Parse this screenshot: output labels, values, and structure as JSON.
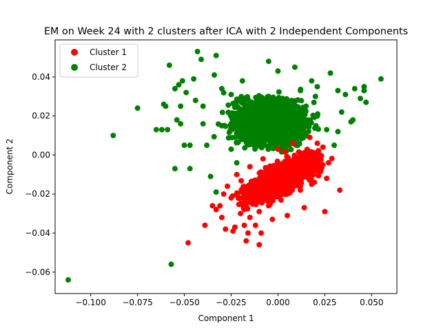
{
  "chart_data": {
    "type": "scatter",
    "title": "EM on Week 24 with 2 clusters after ICA with 2 Independent Components",
    "xlabel": "Component 1",
    "ylabel": "Component 2",
    "xlim": [
      -0.119,
      0.0635
    ],
    "ylim": [
      -0.071,
      0.059
    ],
    "xticks": [
      -0.1,
      -0.075,
      -0.05,
      -0.025,
      0.0,
      0.025,
      0.05
    ],
    "xtick_labels": [
      "−0.100",
      "−0.075",
      "−0.050",
      "−0.025",
      "0.000",
      "0.025",
      "0.050"
    ],
    "yticks": [
      -0.06,
      -0.04,
      -0.02,
      0.0,
      0.02,
      0.04
    ],
    "ytick_labels": [
      "−0.06",
      "−0.04",
      "−0.02",
      "0.00",
      "0.02",
      "0.04"
    ],
    "grid": false,
    "legend_position": "top-left",
    "series": [
      {
        "name": "Cluster 1",
        "color": "#ff0000",
        "points": [
          [
            0.017,
            0.009
          ],
          [
            0.024,
            0.004
          ],
          [
            0.02,
            -0.003
          ],
          [
            0.015,
            -0.008
          ],
          [
            0.01,
            -0.012
          ],
          [
            0.005,
            -0.017
          ],
          [
            0.0,
            -0.021
          ],
          [
            -0.005,
            -0.026
          ],
          [
            -0.01,
            -0.029
          ],
          [
            -0.015,
            -0.032
          ],
          [
            -0.02,
            -0.03
          ],
          [
            -0.025,
            -0.022
          ],
          [
            -0.027,
            -0.016
          ],
          [
            -0.022,
            -0.01
          ],
          [
            -0.015,
            -0.006
          ],
          [
            -0.008,
            -0.002
          ],
          [
            0.0,
            0.003
          ],
          [
            0.008,
            0.006
          ],
          [
            0.027,
            -0.004
          ],
          [
            0.026,
            -0.012
          ],
          [
            0.025,
            -0.029
          ],
          [
            0.033,
            -0.018
          ],
          [
            0.014,
            -0.027
          ],
          [
            0.005,
            -0.031
          ],
          [
            -0.003,
            -0.033
          ],
          [
            -0.012,
            -0.036
          ],
          [
            -0.018,
            -0.036
          ],
          [
            -0.023,
            -0.037
          ],
          [
            -0.028,
            -0.038
          ],
          [
            -0.03,
            -0.032
          ],
          [
            -0.033,
            -0.028
          ],
          [
            -0.035,
            -0.026
          ],
          [
            -0.031,
            -0.026
          ],
          [
            -0.029,
            -0.02
          ],
          [
            -0.039,
            -0.036
          ],
          [
            -0.024,
            -0.039
          ],
          [
            -0.016,
            -0.04
          ],
          [
            -0.009,
            -0.04
          ],
          [
            -0.017,
            -0.044
          ],
          [
            -0.01,
            -0.046
          ],
          [
            -0.048,
            -0.045
          ],
          [
            -0.02,
            -0.025
          ],
          [
            -0.012,
            -0.02
          ],
          [
            -0.005,
            -0.012
          ],
          [
            0.002,
            -0.008
          ],
          [
            0.01,
            -0.004
          ],
          [
            0.016,
            0.002
          ],
          [
            0.021,
            0.006
          ],
          [
            0.012,
            -0.018
          ],
          [
            0.018,
            -0.015
          ]
        ]
      },
      {
        "name": "Cluster 2",
        "color": "#008000",
        "points": [
          [
            -0.112,
            -0.064
          ],
          [
            -0.088,
            0.01
          ],
          [
            -0.075,
            0.024
          ],
          [
            -0.065,
            0.013
          ],
          [
            -0.062,
            0.013
          ],
          [
            -0.059,
            0.013
          ],
          [
            -0.061,
            0.026
          ],
          [
            -0.06,
            0.025
          ],
          [
            -0.058,
            0.046
          ],
          [
            -0.055,
            0.034
          ],
          [
            -0.053,
            0.036
          ],
          [
            -0.051,
            0.038
          ],
          [
            -0.049,
            0.032
          ],
          [
            -0.052,
            0.025
          ],
          [
            -0.054,
            0.018
          ],
          [
            -0.052,
            0.016
          ],
          [
            -0.05,
            0.005
          ],
          [
            -0.047,
            0.005
          ],
          [
            -0.055,
            -0.007
          ],
          [
            -0.047,
            -0.007
          ],
          [
            -0.043,
            0.053
          ],
          [
            -0.041,
            0.049
          ],
          [
            -0.033,
            0.051
          ],
          [
            -0.045,
            0.039
          ],
          [
            -0.044,
            0.028
          ],
          [
            -0.04,
            0.025
          ],
          [
            -0.038,
            0.005
          ],
          [
            -0.04,
            0.016
          ],
          [
            -0.036,
            -0.011
          ],
          [
            -0.033,
            -0.019
          ],
          [
            -0.034,
            0.041
          ],
          [
            -0.03,
            0.034
          ],
          [
            -0.025,
            0.031
          ],
          [
            -0.019,
            0.038
          ],
          [
            -0.005,
            0.048
          ],
          [
            0.0,
            0.043
          ],
          [
            0.009,
            0.045
          ],
          [
            0.018,
            0.038
          ],
          [
            0.021,
            0.035
          ],
          [
            0.028,
            0.042
          ],
          [
            0.032,
            0.033
          ],
          [
            0.036,
            0.031
          ],
          [
            0.041,
            0.034
          ],
          [
            0.044,
            0.029
          ],
          [
            0.046,
            0.035
          ],
          [
            0.046,
            0.033
          ],
          [
            0.047,
            0.027
          ],
          [
            0.055,
            0.039
          ],
          [
            0.039,
            0.017
          ],
          [
            0.04,
            0.018
          ],
          [
            0.034,
            0.022
          ],
          [
            0.032,
            0.012
          ],
          [
            0.03,
            0.005
          ],
          [
            0.026,
            0.013
          ],
          [
            0.021,
            0.02
          ],
          [
            -0.057,
            -0.056
          ],
          [
            -0.02,
            0.01
          ],
          [
            -0.01,
            0.015
          ],
          [
            0.0,
            0.018
          ],
          [
            0.01,
            0.02
          ],
          [
            -0.025,
            0.003
          ],
          [
            -0.015,
            0.022
          ],
          [
            0.005,
            0.028
          ],
          [
            -0.03,
            0.015
          ],
          [
            0.015,
            0.025
          ],
          [
            -0.022,
            -0.004
          ],
          [
            -0.005,
            0.03
          ],
          [
            0.02,
            0.03
          ],
          [
            -0.018,
            0.028
          ],
          [
            0.012,
            0.033
          ]
        ]
      }
    ]
  }
}
